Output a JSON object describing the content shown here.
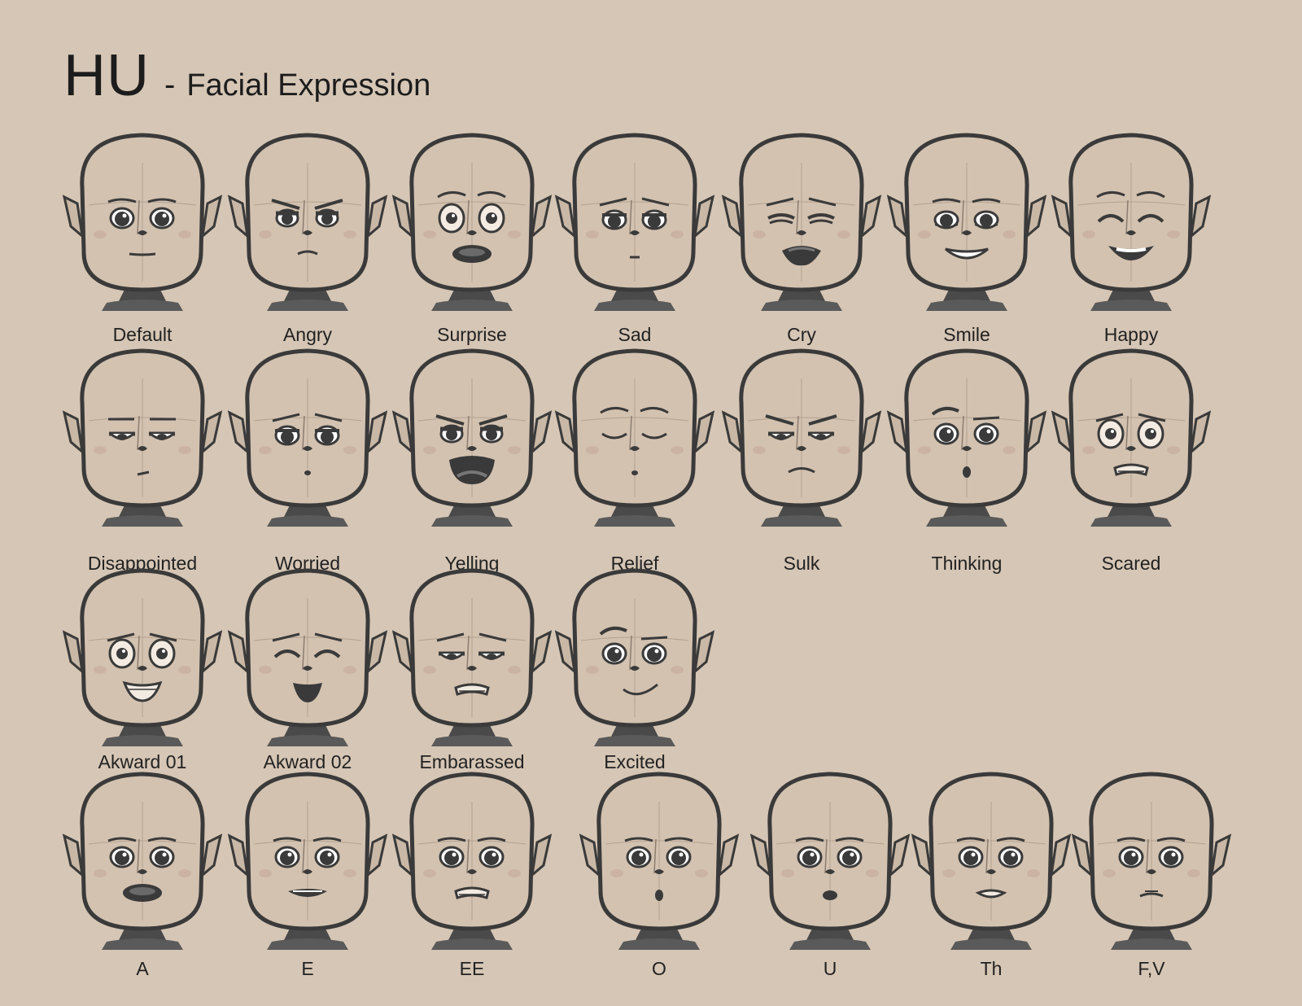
{
  "title": {
    "main": "HU",
    "dash": "-",
    "subtitle": "Facial Expression"
  },
  "rows": [
    {
      "faces": [
        {
          "label": "Default",
          "eyes": "round",
          "brows": "neutral",
          "mouth": "line"
        },
        {
          "label": "Angry",
          "eyes": "angry",
          "brows": "angry",
          "mouth": "frown-small"
        },
        {
          "label": "Surprise",
          "eyes": "wide",
          "brows": "raised",
          "mouth": "open-oval"
        },
        {
          "label": "Sad",
          "eyes": "droopy",
          "brows": "sad",
          "mouth": "tiny"
        },
        {
          "label": "Cry",
          "eyes": "squint",
          "brows": "sad",
          "mouth": "cry"
        },
        {
          "label": "Smile",
          "eyes": "happy",
          "brows": "neutral",
          "mouth": "smile"
        },
        {
          "label": "Happy",
          "eyes": "closed-up",
          "brows": "raised",
          "mouth": "grin-open"
        }
      ]
    },
    {
      "faces": [
        {
          "label": "Disappointed",
          "eyes": "half",
          "brows": "flat",
          "mouth": "tiny-side"
        },
        {
          "label": "Worried",
          "eyes": "droopy",
          "brows": "sad",
          "mouth": "dot"
        },
        {
          "label": "Yelling",
          "eyes": "angry",
          "brows": "angry",
          "mouth": "yell"
        },
        {
          "label": "Relief",
          "eyes": "closed",
          "brows": "raised",
          "mouth": "dot"
        },
        {
          "label": "Sulk",
          "eyes": "half",
          "brows": "angry",
          "mouth": "frown"
        },
        {
          "label": "Thinking",
          "eyes": "round",
          "brows": "uneven",
          "mouth": "o-small"
        },
        {
          "label": "Scared",
          "eyes": "wide",
          "brows": "sad",
          "mouth": "teeth"
        }
      ]
    },
    {
      "faces": [
        {
          "label": "Akward 01",
          "eyes": "wide",
          "brows": "sad",
          "mouth": "teeth-smile"
        },
        {
          "label": "Akward 02",
          "eyes": "closed-up",
          "brows": "sad",
          "mouth": "smile-open"
        },
        {
          "label": "Embarassed",
          "eyes": "half",
          "brows": "sad",
          "mouth": "teeth"
        },
        {
          "label": "Excited",
          "eyes": "round",
          "brows": "uneven",
          "mouth": "smirk"
        }
      ]
    },
    {
      "faces": [
        {
          "label": "A",
          "eyes": "round",
          "brows": "neutral",
          "mouth": "open-oval"
        },
        {
          "label": "E",
          "eyes": "round",
          "brows": "neutral",
          "mouth": "e-wide"
        },
        {
          "label": "EE",
          "eyes": "round",
          "brows": "neutral",
          "mouth": "teeth"
        },
        {
          "label": "O",
          "eyes": "round",
          "brows": "neutral",
          "mouth": "o-small"
        },
        {
          "label": "U",
          "eyes": "round",
          "brows": "neutral",
          "mouth": "u-pucker"
        },
        {
          "label": "Th",
          "eyes": "round",
          "brows": "neutral",
          "mouth": "th"
        },
        {
          "label": "F,V",
          "eyes": "round",
          "brows": "neutral",
          "mouth": "fv"
        }
      ]
    }
  ]
}
